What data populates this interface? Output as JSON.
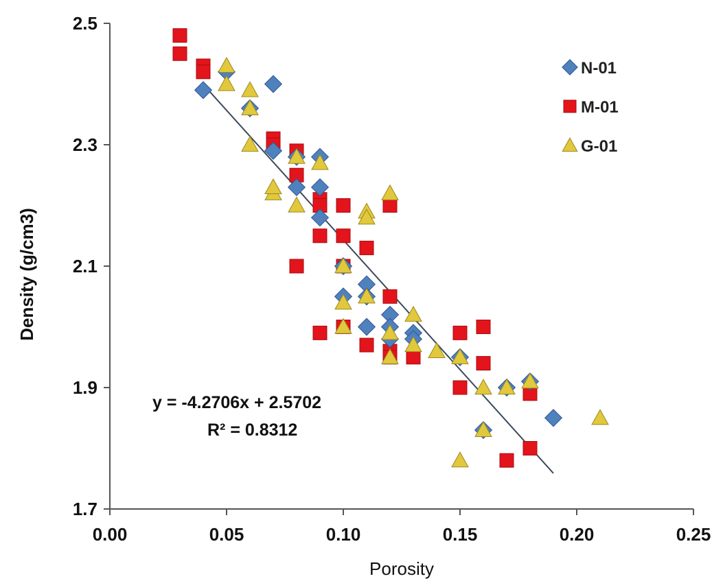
{
  "chart_data": {
    "type": "scatter",
    "title": "",
    "xlabel": "Porosity",
    "ylabel": "Density  (g/cm3)",
    "xlim": [
      0.0,
      0.25
    ],
    "ylim": [
      1.7,
      2.5
    ],
    "xticks": [
      "0.00",
      "0.05",
      "0.10",
      "0.15",
      "0.20",
      "0.25"
    ],
    "xtick_values": [
      0.0,
      0.05,
      0.1,
      0.15,
      0.2,
      0.25
    ],
    "yticks": [
      "1.7",
      "1.9",
      "2.1",
      "2.3",
      "2.5"
    ],
    "ytick_values": [
      1.7,
      1.9,
      2.1,
      2.3,
      2.5
    ],
    "grid": false,
    "legend_position": "top-right",
    "series": [
      {
        "name": "N-01",
        "marker": "diamond",
        "color": "#4f81bd",
        "x": [
          0.04,
          0.05,
          0.07,
          0.06,
          0.07,
          0.08,
          0.08,
          0.09,
          0.09,
          0.09,
          0.1,
          0.1,
          0.11,
          0.11,
          0.11,
          0.12,
          0.12,
          0.12,
          0.13,
          0.13,
          0.15,
          0.16,
          0.17,
          0.18,
          0.19
        ],
        "y": [
          2.39,
          2.42,
          2.4,
          2.36,
          2.29,
          2.28,
          2.23,
          2.23,
          2.18,
          2.28,
          2.05,
          2.1,
          2.07,
          2.05,
          2.0,
          2.02,
          1.98,
          2.0,
          1.99,
          1.98,
          1.95,
          1.83,
          1.9,
          1.91,
          1.85
        ]
      },
      {
        "name": "M-01",
        "marker": "square",
        "color": "#e3141b",
        "x": [
          0.03,
          0.03,
          0.04,
          0.04,
          0.07,
          0.07,
          0.08,
          0.08,
          0.08,
          0.09,
          0.09,
          0.09,
          0.09,
          0.1,
          0.1,
          0.1,
          0.1,
          0.11,
          0.11,
          0.12,
          0.12,
          0.12,
          0.12,
          0.13,
          0.15,
          0.15,
          0.16,
          0.16,
          0.17,
          0.18,
          0.18
        ],
        "y": [
          2.48,
          2.45,
          2.43,
          2.42,
          2.31,
          2.3,
          2.29,
          2.25,
          2.1,
          2.21,
          2.2,
          2.15,
          1.99,
          2.2,
          2.15,
          2.1,
          2.0,
          2.13,
          1.97,
          2.2,
          2.05,
          1.96,
          1.95,
          1.95,
          1.99,
          1.9,
          2.0,
          1.94,
          1.78,
          1.89,
          1.8
        ]
      },
      {
        "name": "G-01",
        "marker": "triangle",
        "color": "#e1c83c",
        "x": [
          0.05,
          0.05,
          0.06,
          0.06,
          0.06,
          0.07,
          0.07,
          0.08,
          0.08,
          0.09,
          0.1,
          0.1,
          0.1,
          0.11,
          0.11,
          0.11,
          0.12,
          0.12,
          0.12,
          0.13,
          0.13,
          0.14,
          0.15,
          0.15,
          0.16,
          0.16,
          0.17,
          0.18,
          0.21
        ],
        "y": [
          2.43,
          2.4,
          2.39,
          2.36,
          2.3,
          2.22,
          2.23,
          2.2,
          2.28,
          2.27,
          2.1,
          2.04,
          2.0,
          2.19,
          2.18,
          2.05,
          2.22,
          1.99,
          1.95,
          2.02,
          1.97,
          1.96,
          1.95,
          1.78,
          1.9,
          1.83,
          1.9,
          1.91,
          1.85
        ]
      }
    ],
    "trendline": {
      "slope": -4.2706,
      "intercept": 2.5702,
      "x_range": [
        0.04,
        0.19
      ],
      "color": "#3a4a5a"
    },
    "annotations": {
      "equation": "y = -4.2706x + 2.5702",
      "r_squared": "R² = 0.8312"
    }
  }
}
